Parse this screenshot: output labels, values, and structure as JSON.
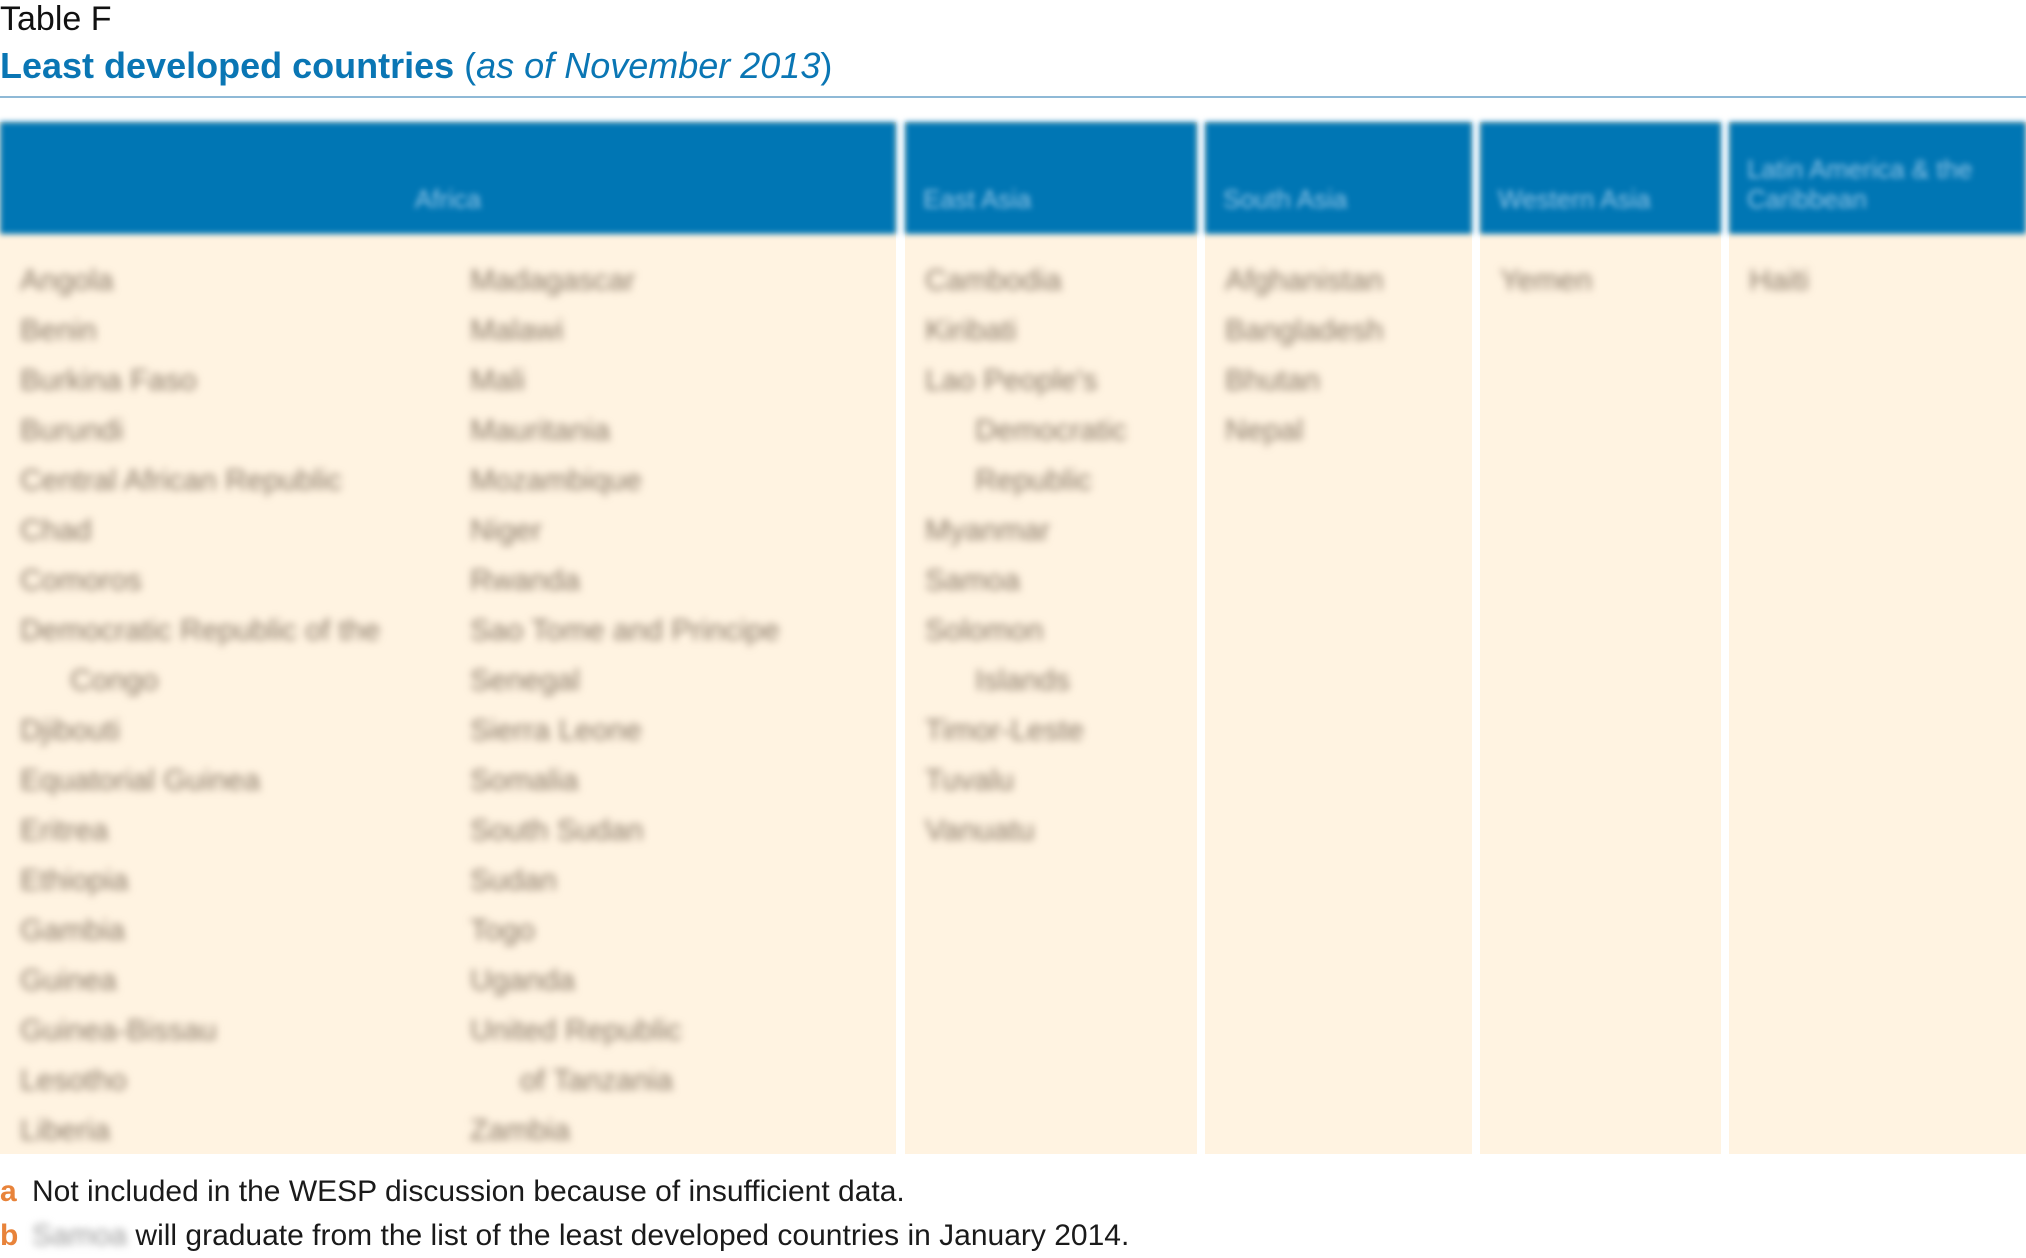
{
  "header": {
    "label": "Table F",
    "title_main": "Least developed countries",
    "title_sub_open": " (",
    "title_sub": "as of November 2013",
    "title_sub_close": ")"
  },
  "columns": [
    {
      "heading": "Africa",
      "lists": [
        [
          "Angola",
          "Benin",
          "Burkina Faso",
          "Burundi",
          "Central African Republic",
          "Chad",
          "Comoros",
          "Democratic Republic of the",
          "Congo",
          "Djibouti",
          "Equatorial Guinea",
          "Eritrea",
          "Ethiopia",
          "Gambia",
          "Guinea",
          "Guinea-Bissau",
          "Lesotho",
          "Liberia"
        ],
        [
          "Madagascar",
          "Malawi",
          "Mali",
          "Mauritania",
          "Mozambique",
          "Niger",
          "Rwanda",
          "Sao Tome and Principe",
          "Senegal",
          "Sierra Leone",
          "Somalia",
          "South Sudan",
          "Sudan",
          "Togo",
          "Uganda",
          "United Republic",
          "of Tanzania",
          "Zambia"
        ]
      ]
    },
    {
      "heading": "East Asia",
      "lists": [
        [
          "Cambodia",
          "Kiribati",
          "Lao People's",
          "Democratic",
          "Republic",
          "Myanmar",
          "Samoa",
          "Solomon",
          "Islands",
          "Timor-Leste",
          "Tuvalu",
          "Vanuatu"
        ]
      ]
    },
    {
      "heading": "South Asia",
      "lists": [
        [
          "Afghanistan",
          "Bangladesh",
          "Bhutan",
          "Nepal"
        ]
      ]
    },
    {
      "heading": "Western Asia",
      "lists": [
        [
          "Yemen"
        ]
      ]
    },
    {
      "heading": "Latin America & the Caribbean",
      "lists": [
        [
          "Haiti"
        ]
      ]
    }
  ],
  "footnotes": {
    "a_mark": "a",
    "a_text": "Not included in the WESP discussion because of insufficient data.",
    "b_mark": "b",
    "b_blurred": "Samoa",
    "b_text": " will graduate from the list of the least developed countries in January 2014."
  },
  "colors": {
    "header_blue": "#0076b4",
    "title_blue": "#0a76b4",
    "cell_background": "#fff3e1",
    "footnote_mark": "#e8833a"
  }
}
